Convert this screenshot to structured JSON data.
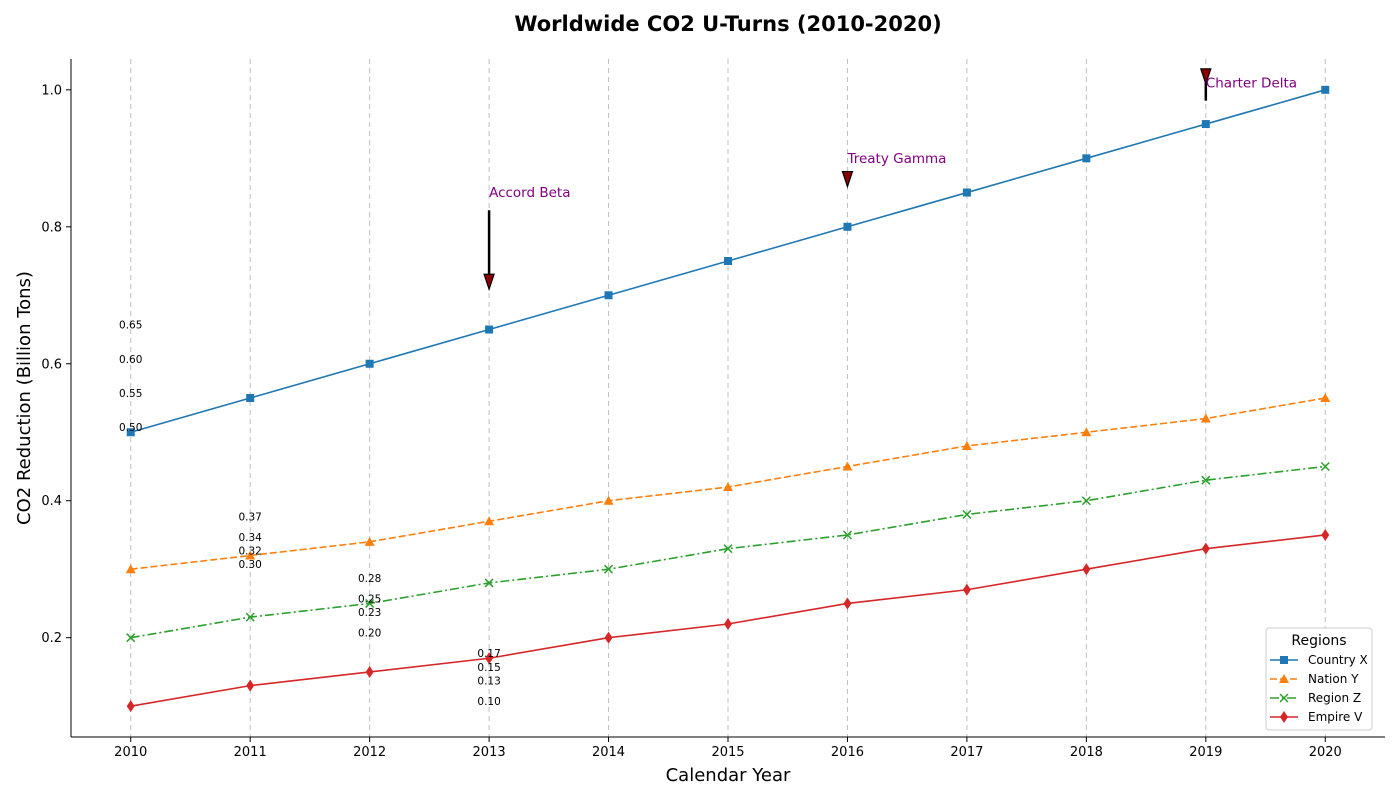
{
  "chart_data": {
    "type": "line",
    "title": "Worldwide CO2 U-Turns (2010-2020)",
    "xlabel": "Calendar Year",
    "ylabel": "CO2 Reduction (Billion Tons)",
    "x": [
      2010,
      2011,
      2012,
      2013,
      2014,
      2015,
      2016,
      2017,
      2018,
      2019,
      2020
    ],
    "xlim": [
      2009.5,
      2020.5
    ],
    "ylim": [
      0.055,
      1.045
    ],
    "yticks": [
      "0.2",
      "0.4",
      "0.6",
      "0.8",
      "1.0"
    ],
    "ytick_values": [
      0.2,
      0.4,
      0.6,
      0.8,
      1.0
    ],
    "grid": "x-only dashed",
    "series": [
      {
        "name": "Country X",
        "color": "#1f77b4",
        "dash": "solid",
        "marker": "square",
        "values": [
          0.5,
          0.55,
          0.6,
          0.65,
          0.7,
          0.75,
          0.8,
          0.85,
          0.9,
          0.95,
          1.0
        ]
      },
      {
        "name": "Nation Y",
        "color": "#ff7f0e",
        "dash": "dashed",
        "marker": "triangle",
        "values": [
          0.3,
          0.32,
          0.34,
          0.37,
          0.4,
          0.42,
          0.45,
          0.48,
          0.5,
          0.52,
          0.55
        ]
      },
      {
        "name": "Region Z",
        "color": "#2ca02c",
        "dash": "dashdot",
        "marker": "x",
        "values": [
          0.2,
          0.23,
          0.25,
          0.28,
          0.3,
          0.33,
          0.35,
          0.38,
          0.4,
          0.43,
          0.45
        ]
      },
      {
        "name": "Empire V",
        "color": "#d62728",
        "dash": "solid",
        "marker": "diamond",
        "values": [
          0.1,
          0.13,
          0.15,
          0.17,
          0.2,
          0.22,
          0.25,
          0.27,
          0.3,
          0.33,
          0.35
        ]
      }
    ],
    "data_labels": [
      {
        "x": 2010,
        "labels": [
          {
            "text": "0.65",
            "y": 0.65
          },
          {
            "text": "0.60",
            "y": 0.6
          },
          {
            "text": "0.55",
            "y": 0.55
          },
          {
            "text": "0.50",
            "y": 0.5
          }
        ]
      },
      {
        "x": 2011,
        "labels": [
          {
            "text": "0.37",
            "y": 0.37
          },
          {
            "text": "0.34",
            "y": 0.34
          },
          {
            "text": "0.32",
            "y": 0.32
          },
          {
            "text": "0.30",
            "y": 0.3
          }
        ]
      },
      {
        "x": 2012,
        "labels": [
          {
            "text": "0.28",
            "y": 0.28
          },
          {
            "text": "0.25",
            "y": 0.25
          },
          {
            "text": "0.23",
            "y": 0.23
          },
          {
            "text": "0.20",
            "y": 0.2
          }
        ]
      },
      {
        "x": 2013,
        "labels": [
          {
            "text": "0.17",
            "y": 0.17
          },
          {
            "text": "0.15",
            "y": 0.15
          },
          {
            "text": "0.13",
            "y": 0.13
          },
          {
            "text": "0.10",
            "y": 0.1
          }
        ]
      }
    ],
    "annotations": [
      {
        "text": "Accord Beta",
        "x": 2013,
        "y": 0.65,
        "text_y": 0.83
      },
      {
        "text": "Treaty Gamma",
        "x": 2016,
        "y": 0.8,
        "text_y": 0.88
      },
      {
        "text": "Charter Delta",
        "x": 2019,
        "y": 0.95,
        "text_y": 0.99
      }
    ],
    "annotation_color": "#800080",
    "arrow_color": "#8b0000",
    "legend": {
      "title": "Regions",
      "placement": "lower-right"
    }
  }
}
